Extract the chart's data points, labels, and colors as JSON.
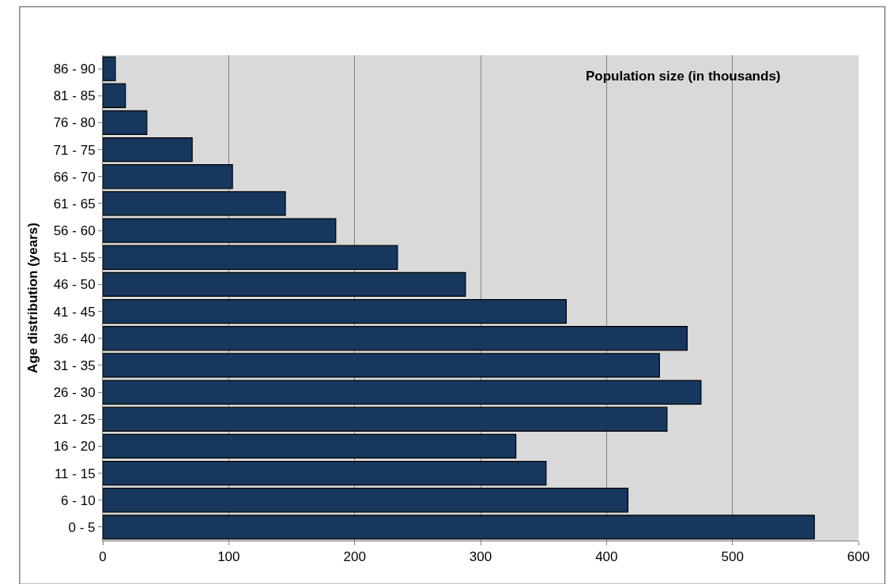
{
  "chart_data": {
    "type": "bar",
    "orientation": "horizontal",
    "xlabel": "Population size (in thousands)",
    "ylabel": "Age distribution (years)",
    "categories": [
      "86 - 90",
      "81 - 85",
      "76 - 80",
      "71 - 75",
      "66 - 70",
      "61 - 65",
      "56 - 60",
      "51 - 55",
      "46 - 50",
      "41 - 45",
      "36 - 40",
      "31 - 35",
      "26 - 30",
      "21 - 25",
      "16 - 20",
      "11 - 15",
      "6 - 10",
      "0 - 5"
    ],
    "values": [
      10,
      18,
      35,
      71,
      103,
      145,
      185,
      234,
      288,
      368,
      464,
      442,
      475,
      448,
      328,
      352,
      417,
      565
    ],
    "color": "#17375e",
    "xlim": [
      0,
      600
    ],
    "xticks": [
      0,
      100,
      200,
      300,
      400,
      500,
      600
    ],
    "grid": "x",
    "legend": false
  }
}
